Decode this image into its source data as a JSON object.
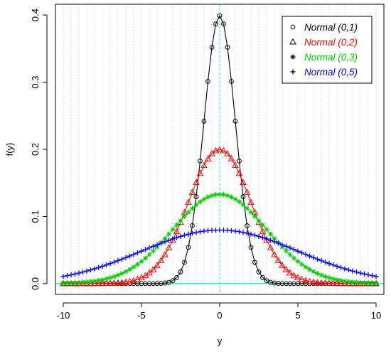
{
  "chart_data": {
    "type": "line",
    "title": "",
    "xlabel": "y",
    "ylabel": "f(y)",
    "xlim": [
      -10.5,
      10.5
    ],
    "ylim": [
      -0.016,
      0.416
    ],
    "xticks": [
      -10,
      -5,
      0,
      5,
      10
    ],
    "xtick_labels": [
      "-10",
      "-5",
      "0",
      "5",
      "10"
    ],
    "yticks": [
      0.0,
      0.1,
      0.2,
      0.3,
      0.4
    ],
    "ytick_labels": [
      "0.0",
      "0.1",
      "0.2",
      "0.3",
      "0.4"
    ],
    "grid": "vertical dotted lines at x = -10 to 10 step 0.5",
    "reference_lines": {
      "x": 0,
      "y": 0,
      "color": "#00e5ee"
    },
    "x_sample": {
      "from": -10,
      "to": 10,
      "step": 0.25
    },
    "series": [
      {
        "name": "Normal (0,1)",
        "mean": 0,
        "sd": 1,
        "color": "#000000",
        "marker": "circle",
        "peak": 0.399
      },
      {
        "name": "Normal (0,2)",
        "mean": 0,
        "sd": 2,
        "color": "#ff0000",
        "marker": "triangle",
        "peak": 0.199
      },
      {
        "name": "Normal (0,3)",
        "mean": 0,
        "sd": 3,
        "color": "#00cc00",
        "marker": "asterisk",
        "peak": 0.133
      },
      {
        "name": "Normal (0,5)",
        "mean": 0,
        "sd": 5,
        "color": "#0000ff",
        "marker": "plus",
        "peak": 0.08
      }
    ],
    "legend": {
      "position": "top-right",
      "entries": [
        "Normal (0,1)",
        "Normal (0,2)",
        "Normal (0,3)",
        "Normal (0,5)"
      ]
    }
  }
}
